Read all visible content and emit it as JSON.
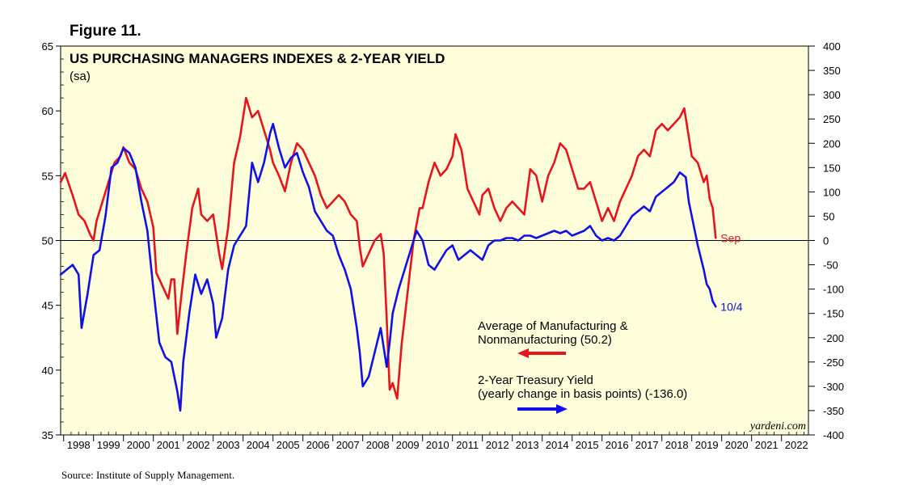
{
  "figure_label": "Figure 11.",
  "source": "Source: Institute of Supply Management.",
  "chart_data": {
    "type": "line",
    "title": "US PURCHASING MANAGERS INDEXES & 2-YEAR YIELD",
    "subtitle": "(sa)",
    "watermark": "yardeni.com",
    "x_ticks": [
      "1998",
      "1999",
      "2000",
      "2001",
      "2002",
      "2003",
      "2004",
      "2005",
      "2006",
      "2007",
      "2008",
      "2009",
      "2010",
      "2011",
      "2012",
      "2013",
      "2014",
      "2015",
      "2016",
      "2017",
      "2018",
      "2019",
      "2020",
      "2021",
      "2022"
    ],
    "xlim": [
      1997.9,
      2022.9
    ],
    "y_left": {
      "lim": [
        35,
        65
      ],
      "ticks": [
        35,
        40,
        45,
        50,
        55,
        60,
        65
      ],
      "reference_line": 50
    },
    "y_right": {
      "lim": [
        -400,
        400
      ],
      "ticks": [
        -400,
        -350,
        -300,
        -250,
        -200,
        -150,
        -100,
        -50,
        0,
        50,
        100,
        150,
        200,
        250,
        300,
        350,
        400
      ]
    },
    "series": [
      {
        "name": "Average of Manufacturing & Nonmanufacturing (50.2)",
        "legend_line1": "Average of Manufacturing &",
        "legend_line2": "Nonmanufacturing (50.2)",
        "axis": "left",
        "color": "#e8141c",
        "end_label": "Sep",
        "points": [
          [
            1997.9,
            54.5
          ],
          [
            1998.05,
            55.2
          ],
          [
            1998.3,
            53.5
          ],
          [
            1998.5,
            52
          ],
          [
            1998.7,
            51.5
          ],
          [
            1998.9,
            50.4
          ],
          [
            1999.0,
            50.0
          ],
          [
            1999.1,
            51.5
          ],
          [
            1999.3,
            53
          ],
          [
            1999.5,
            54.5
          ],
          [
            1999.7,
            56
          ],
          [
            1999.9,
            56.5
          ],
          [
            2000.0,
            57.2
          ],
          [
            2000.2,
            56
          ],
          [
            2000.4,
            55.5
          ],
          [
            2000.6,
            54
          ],
          [
            2000.8,
            53
          ],
          [
            2001.0,
            51
          ],
          [
            2001.1,
            47.5
          ],
          [
            2001.3,
            46.5
          ],
          [
            2001.5,
            45.5
          ],
          [
            2001.6,
            47
          ],
          [
            2001.7,
            47
          ],
          [
            2001.8,
            42.8
          ],
          [
            2001.95,
            46
          ],
          [
            2002.1,
            49
          ],
          [
            2002.3,
            52.5
          ],
          [
            2002.5,
            54
          ],
          [
            2002.6,
            52
          ],
          [
            2002.8,
            51.5
          ],
          [
            2003.0,
            52
          ],
          [
            2003.2,
            49
          ],
          [
            2003.3,
            47.8
          ],
          [
            2003.5,
            51
          ],
          [
            2003.7,
            56
          ],
          [
            2003.9,
            58
          ],
          [
            2004.0,
            59.5
          ],
          [
            2004.1,
            61
          ],
          [
            2004.3,
            59.5
          ],
          [
            2004.5,
            60
          ],
          [
            2004.7,
            58.5
          ],
          [
            2004.9,
            57
          ],
          [
            2005.0,
            56
          ],
          [
            2005.2,
            55
          ],
          [
            2005.4,
            53.8
          ],
          [
            2005.6,
            56
          ],
          [
            2005.8,
            57.5
          ],
          [
            2006.0,
            57
          ],
          [
            2006.2,
            56
          ],
          [
            2006.4,
            55
          ],
          [
            2006.6,
            53.5
          ],
          [
            2006.8,
            52.5
          ],
          [
            2007.0,
            53
          ],
          [
            2007.2,
            53.5
          ],
          [
            2007.4,
            53
          ],
          [
            2007.6,
            52
          ],
          [
            2007.8,
            51.5
          ],
          [
            2007.9,
            49.5
          ],
          [
            2008.0,
            48
          ],
          [
            2008.2,
            49
          ],
          [
            2008.4,
            50
          ],
          [
            2008.6,
            50.5
          ],
          [
            2008.7,
            49
          ],
          [
            2008.8,
            44
          ],
          [
            2008.9,
            38.5
          ],
          [
            2009.0,
            39
          ],
          [
            2009.15,
            37.8
          ],
          [
            2009.3,
            42
          ],
          [
            2009.5,
            46
          ],
          [
            2009.7,
            50
          ],
          [
            2009.9,
            52.5
          ],
          [
            2010.0,
            52.5
          ],
          [
            2010.2,
            54.5
          ],
          [
            2010.4,
            56
          ],
          [
            2010.6,
            55
          ],
          [
            2010.8,
            55.5
          ],
          [
            2011.0,
            56.5
          ],
          [
            2011.1,
            58.2
          ],
          [
            2011.3,
            57
          ],
          [
            2011.5,
            54
          ],
          [
            2011.7,
            53
          ],
          [
            2011.9,
            52
          ],
          [
            2012.0,
            53.5
          ],
          [
            2012.2,
            54
          ],
          [
            2012.4,
            52.5
          ],
          [
            2012.6,
            51.5
          ],
          [
            2012.8,
            52.5
          ],
          [
            2013.0,
            53
          ],
          [
            2013.2,
            52.5
          ],
          [
            2013.4,
            52
          ],
          [
            2013.6,
            55.5
          ],
          [
            2013.8,
            55
          ],
          [
            2014.0,
            53
          ],
          [
            2014.2,
            55
          ],
          [
            2014.4,
            56
          ],
          [
            2014.6,
            57.5
          ],
          [
            2014.8,
            57
          ],
          [
            2015.0,
            55.5
          ],
          [
            2015.2,
            54
          ],
          [
            2015.4,
            54
          ],
          [
            2015.6,
            54.5
          ],
          [
            2015.8,
            53
          ],
          [
            2016.0,
            51.5
          ],
          [
            2016.2,
            52.5
          ],
          [
            2016.4,
            51.5
          ],
          [
            2016.6,
            53
          ],
          [
            2016.8,
            54
          ],
          [
            2017.0,
            55
          ],
          [
            2017.2,
            56.5
          ],
          [
            2017.4,
            57
          ],
          [
            2017.6,
            56.5
          ],
          [
            2017.8,
            58.5
          ],
          [
            2018.0,
            59
          ],
          [
            2018.2,
            58.5
          ],
          [
            2018.4,
            59
          ],
          [
            2018.6,
            59.5
          ],
          [
            2018.75,
            60.2
          ],
          [
            2018.9,
            58
          ],
          [
            2019.0,
            56.5
          ],
          [
            2019.2,
            56
          ],
          [
            2019.4,
            54.5
          ],
          [
            2019.5,
            55
          ],
          [
            2019.6,
            53.2
          ],
          [
            2019.7,
            52.5
          ],
          [
            2019.8,
            50.2
          ]
        ]
      },
      {
        "name": "2-Year Treasury Yield (yearly change in basis points) (-136.0)",
        "legend_line1": "2-Year Treasury Yield",
        "legend_line2": "(yearly change in basis points) (-136.0)",
        "axis": "right",
        "color": "#1010e8",
        "end_label": "10/4",
        "points": [
          [
            1997.9,
            -70
          ],
          [
            1998.1,
            -60
          ],
          [
            1998.3,
            -50
          ],
          [
            1998.5,
            -70
          ],
          [
            1998.6,
            -180
          ],
          [
            1998.8,
            -110
          ],
          [
            1999.0,
            -30
          ],
          [
            1999.2,
            -20
          ],
          [
            1999.4,
            50
          ],
          [
            1999.6,
            150
          ],
          [
            1999.8,
            160
          ],
          [
            2000.0,
            190
          ],
          [
            2000.2,
            180
          ],
          [
            2000.4,
            150
          ],
          [
            2000.6,
            80
          ],
          [
            2000.8,
            20
          ],
          [
            2001.0,
            -100
          ],
          [
            2001.2,
            -210
          ],
          [
            2001.4,
            -240
          ],
          [
            2001.6,
            -250
          ],
          [
            2001.8,
            -310
          ],
          [
            2001.9,
            -350
          ],
          [
            2002.0,
            -250
          ],
          [
            2002.2,
            -150
          ],
          [
            2002.4,
            -70
          ],
          [
            2002.6,
            -110
          ],
          [
            2002.8,
            -80
          ],
          [
            2003.0,
            -130
          ],
          [
            2003.1,
            -200
          ],
          [
            2003.3,
            -160
          ],
          [
            2003.5,
            -60
          ],
          [
            2003.7,
            -10
          ],
          [
            2003.9,
            10
          ],
          [
            2004.1,
            30
          ],
          [
            2004.3,
            160
          ],
          [
            2004.5,
            120
          ],
          [
            2004.7,
            160
          ],
          [
            2004.9,
            220
          ],
          [
            2005.0,
            240
          ],
          [
            2005.2,
            190
          ],
          [
            2005.4,
            150
          ],
          [
            2005.6,
            170
          ],
          [
            2005.8,
            180
          ],
          [
            2006.0,
            140
          ],
          [
            2006.2,
            110
          ],
          [
            2006.4,
            60
          ],
          [
            2006.6,
            40
          ],
          [
            2006.8,
            20
          ],
          [
            2007.0,
            10
          ],
          [
            2007.2,
            -30
          ],
          [
            2007.4,
            -60
          ],
          [
            2007.6,
            -100
          ],
          [
            2007.8,
            -180
          ],
          [
            2007.9,
            -230
          ],
          [
            2008.0,
            -300
          ],
          [
            2008.2,
            -280
          ],
          [
            2008.4,
            -230
          ],
          [
            2008.6,
            -180
          ],
          [
            2008.8,
            -260
          ],
          [
            2008.9,
            -210
          ],
          [
            2009.0,
            -150
          ],
          [
            2009.2,
            -100
          ],
          [
            2009.4,
            -60
          ],
          [
            2009.6,
            -20
          ],
          [
            2009.8,
            20
          ],
          [
            2010.0,
            0
          ],
          [
            2010.2,
            -50
          ],
          [
            2010.4,
            -60
          ],
          [
            2010.6,
            -40
          ],
          [
            2010.8,
            -20
          ],
          [
            2011.0,
            -10
          ],
          [
            2011.2,
            -40
          ],
          [
            2011.4,
            -30
          ],
          [
            2011.6,
            -20
          ],
          [
            2011.8,
            -30
          ],
          [
            2012.0,
            -40
          ],
          [
            2012.2,
            -10
          ],
          [
            2012.4,
            0
          ],
          [
            2012.6,
            0
          ],
          [
            2012.8,
            5
          ],
          [
            2013.0,
            5
          ],
          [
            2013.2,
            0
          ],
          [
            2013.4,
            10
          ],
          [
            2013.6,
            10
          ],
          [
            2013.8,
            5
          ],
          [
            2014.0,
            10
          ],
          [
            2014.2,
            15
          ],
          [
            2014.4,
            20
          ],
          [
            2014.6,
            15
          ],
          [
            2014.8,
            20
          ],
          [
            2015.0,
            10
          ],
          [
            2015.2,
            15
          ],
          [
            2015.4,
            20
          ],
          [
            2015.6,
            30
          ],
          [
            2015.8,
            10
          ],
          [
            2016.0,
            0
          ],
          [
            2016.2,
            5
          ],
          [
            2016.4,
            0
          ],
          [
            2016.6,
            10
          ],
          [
            2016.8,
            30
          ],
          [
            2017.0,
            50
          ],
          [
            2017.2,
            60
          ],
          [
            2017.4,
            70
          ],
          [
            2017.6,
            60
          ],
          [
            2017.8,
            90
          ],
          [
            2018.0,
            100
          ],
          [
            2018.2,
            110
          ],
          [
            2018.4,
            120
          ],
          [
            2018.6,
            140
          ],
          [
            2018.8,
            130
          ],
          [
            2018.9,
            80
          ],
          [
            2019.0,
            50
          ],
          [
            2019.2,
            -10
          ],
          [
            2019.4,
            -60
          ],
          [
            2019.5,
            -90
          ],
          [
            2019.6,
            -100
          ],
          [
            2019.7,
            -125
          ],
          [
            2019.8,
            -136
          ]
        ]
      }
    ]
  }
}
